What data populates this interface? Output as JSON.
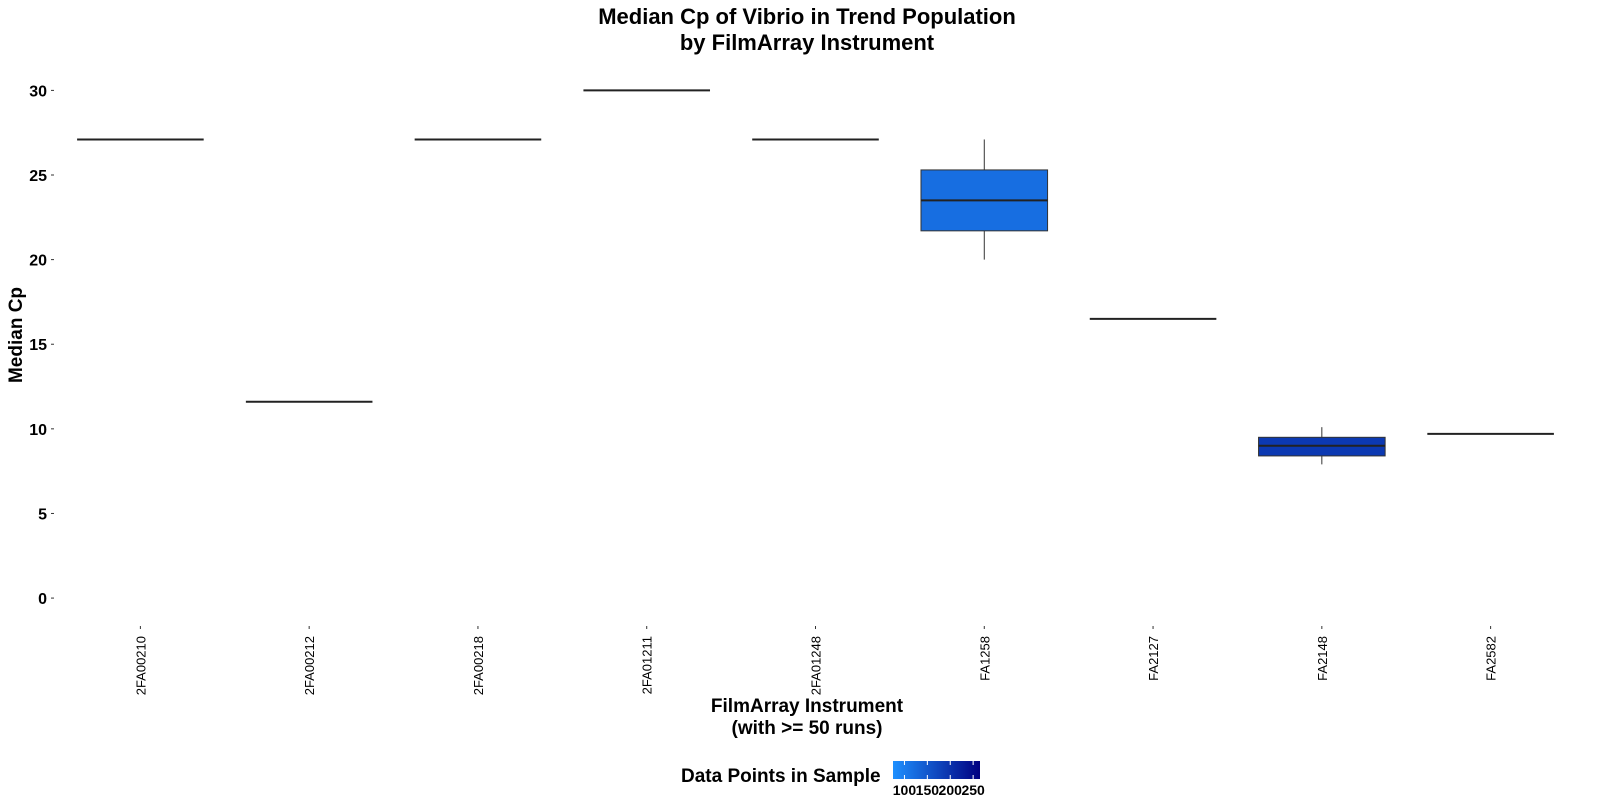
{
  "chart_data": {
    "type": "box",
    "title": [
      "Median Cp of Vibrio in Trend Population",
      "by FilmArray Instrument"
    ],
    "xlabel": [
      "FilmArray Instrument",
      "(with >= 50 runs)"
    ],
    "ylabel": "Median Cp",
    "ylim": [
      -1,
      31.5
    ],
    "yticks": [
      0,
      5,
      10,
      15,
      20,
      25,
      30
    ],
    "categories": [
      "2FA00210",
      "2FA00212",
      "2FA00218",
      "2FA01211",
      "2FA01248",
      "FA1258",
      "FA2127",
      "FA2148",
      "FA2582"
    ],
    "boxes": [
      {
        "category": "2FA00210",
        "min": 27.1,
        "q1": 27.1,
        "median": 27.1,
        "q3": 27.1,
        "max": 27.1,
        "n": 75
      },
      {
        "category": "2FA00212",
        "min": 11.6,
        "q1": 11.6,
        "median": 11.6,
        "q3": 11.6,
        "max": 11.6,
        "n": 75
      },
      {
        "category": "2FA00218",
        "min": 27.1,
        "q1": 27.1,
        "median": 27.1,
        "q3": 27.1,
        "max": 27.1,
        "n": 75
      },
      {
        "category": "2FA01211",
        "min": 30.0,
        "q1": 30.0,
        "median": 30.0,
        "q3": 30.0,
        "max": 30.0,
        "n": 75
      },
      {
        "category": "2FA01248",
        "min": 27.1,
        "q1": 27.1,
        "median": 27.1,
        "q3": 27.1,
        "max": 27.1,
        "n": 75
      },
      {
        "category": "FA1258",
        "min": 20.0,
        "q1": 21.7,
        "median": 23.5,
        "q3": 25.3,
        "max": 27.1,
        "n": 120
      },
      {
        "category": "FA2127",
        "min": 16.5,
        "q1": 16.5,
        "median": 16.5,
        "q3": 16.5,
        "max": 16.5,
        "n": 75
      },
      {
        "category": "FA2148",
        "min": 7.9,
        "q1": 8.4,
        "median": 9.0,
        "q3": 9.5,
        "max": 10.1,
        "n": 190
      },
      {
        "category": "FA2582",
        "min": 9.7,
        "q1": 9.7,
        "median": 9.7,
        "q3": 9.7,
        "max": 9.7,
        "n": 75
      }
    ],
    "legend": {
      "title": "Data Points in Sample",
      "placement": "bottom",
      "ticks": [
        100,
        150,
        200,
        250
      ],
      "range": [
        75,
        265
      ],
      "colors": [
        "#1e90ff",
        "#000080"
      ]
    },
    "grid": false
  }
}
